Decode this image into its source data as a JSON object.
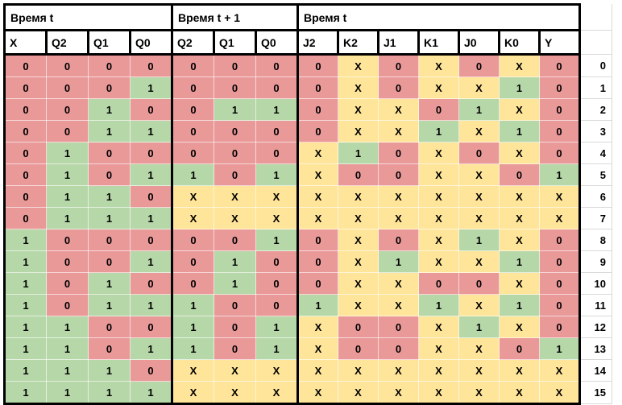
{
  "table": {
    "sections": [
      {
        "title": "Время t",
        "columns": [
          "X",
          "Q2",
          "Q1",
          "Q0"
        ]
      },
      {
        "title": "Время t + 1",
        "columns": [
          "Q2",
          "Q1",
          "Q0"
        ]
      },
      {
        "title": "Время t",
        "columns": [
          "J2",
          "K2",
          "J1",
          "K1",
          "J0",
          "K0",
          "Y"
        ]
      }
    ],
    "rows": [
      {
        "label": "0",
        "values": [
          "0",
          "0",
          "0",
          "0",
          "0",
          "0",
          "0",
          "0",
          "X",
          "0",
          "X",
          "0",
          "X",
          "0"
        ]
      },
      {
        "label": "1",
        "values": [
          "0",
          "0",
          "0",
          "1",
          "0",
          "0",
          "0",
          "0",
          "X",
          "0",
          "X",
          "X",
          "1",
          "0"
        ]
      },
      {
        "label": "2",
        "values": [
          "0",
          "0",
          "1",
          "0",
          "0",
          "1",
          "1",
          "0",
          "X",
          "X",
          "0",
          "1",
          "X",
          "0"
        ]
      },
      {
        "label": "3",
        "values": [
          "0",
          "0",
          "1",
          "1",
          "0",
          "0",
          "0",
          "0",
          "X",
          "X",
          "1",
          "X",
          "1",
          "0"
        ]
      },
      {
        "label": "4",
        "values": [
          "0",
          "1",
          "0",
          "0",
          "0",
          "0",
          "0",
          "X",
          "1",
          "0",
          "X",
          "0",
          "X",
          "0"
        ]
      },
      {
        "label": "5",
        "values": [
          "0",
          "1",
          "0",
          "1",
          "1",
          "0",
          "1",
          "X",
          "0",
          "0",
          "X",
          "X",
          "0",
          "1"
        ]
      },
      {
        "label": "6",
        "values": [
          "0",
          "1",
          "1",
          "0",
          "X",
          "X",
          "X",
          "X",
          "X",
          "X",
          "X",
          "X",
          "X",
          "X"
        ]
      },
      {
        "label": "7",
        "values": [
          "0",
          "1",
          "1",
          "1",
          "X",
          "X",
          "X",
          "X",
          "X",
          "X",
          "X",
          "X",
          "X",
          "X"
        ]
      },
      {
        "label": "8",
        "values": [
          "1",
          "0",
          "0",
          "0",
          "0",
          "0",
          "1",
          "0",
          "X",
          "0",
          "X",
          "1",
          "X",
          "0"
        ]
      },
      {
        "label": "9",
        "values": [
          "1",
          "0",
          "0",
          "1",
          "0",
          "1",
          "0",
          "0",
          "X",
          "1",
          "X",
          "X",
          "1",
          "0"
        ]
      },
      {
        "label": "10",
        "values": [
          "1",
          "0",
          "1",
          "0",
          "0",
          "1",
          "0",
          "0",
          "X",
          "X",
          "0",
          "0",
          "X",
          "0"
        ]
      },
      {
        "label": "11",
        "values": [
          "1",
          "0",
          "1",
          "1",
          "1",
          "0",
          "0",
          "1",
          "X",
          "X",
          "1",
          "X",
          "1",
          "0"
        ]
      },
      {
        "label": "12",
        "values": [
          "1",
          "1",
          "0",
          "0",
          "1",
          "0",
          "1",
          "X",
          "0",
          "0",
          "X",
          "1",
          "X",
          "0"
        ]
      },
      {
        "label": "13",
        "values": [
          "1",
          "1",
          "0",
          "1",
          "1",
          "0",
          "1",
          "X",
          "0",
          "0",
          "X",
          "X",
          "0",
          "1"
        ]
      },
      {
        "label": "14",
        "values": [
          "1",
          "1",
          "1",
          "0",
          "X",
          "X",
          "X",
          "X",
          "X",
          "X",
          "X",
          "X",
          "X",
          "X"
        ]
      },
      {
        "label": "15",
        "values": [
          "1",
          "1",
          "1",
          "1",
          "X",
          "X",
          "X",
          "X",
          "X",
          "X",
          "X",
          "X",
          "X",
          "X"
        ]
      }
    ],
    "value_colors": {
      "0": "#EA9999",
      "1": "#B6D7A8",
      "X": "#FFE599"
    },
    "header_background": "#FFFFFF",
    "border_color": "#000000",
    "gridline_color": "#D9D9D9"
  }
}
